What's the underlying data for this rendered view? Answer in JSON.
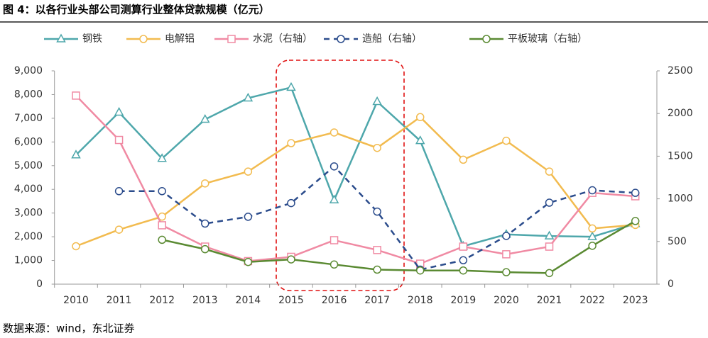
{
  "chart_data": {
    "type": "line",
    "title": "图 4：以各行业头部公司测算行业整体贷款规模（亿元）",
    "source": "数据来源：wind，东北证券",
    "categories": [
      "2010",
      "2011",
      "2012",
      "2013",
      "2014",
      "2015",
      "2016",
      "2017",
      "2018",
      "2019",
      "2020",
      "2021",
      "2022",
      "2023"
    ],
    "series": [
      {
        "name": "钢铁",
        "color": "#4ea7ab",
        "marker": "triangle",
        "values": [
          5450,
          7250,
          5300,
          6950,
          7850,
          8300,
          3550,
          7700,
          6050,
          1600,
          2100,
          2030,
          2000,
          2550
        ]
      },
      {
        "name": "电解铝",
        "color": "#f2bb4f",
        "marker": "circle",
        "values": [
          1600,
          2300,
          2850,
          4250,
          4750,
          5950,
          6400,
          5750,
          7050,
          5250,
          6050,
          4750,
          2350,
          2500
        ]
      },
      {
        "name": "水泥（右轴）",
        "color": "#f08aa3",
        "marker": "square",
        "axis": "y2",
        "values": [
          2210,
          1690,
          690,
          440,
          270,
          320,
          515,
          400,
          240,
          440,
          350,
          440,
          1070,
          1030
        ]
      },
      {
        "name": "造船（右轴）",
        "color": "#2b4c8c",
        "marker": "circle",
        "dash": true,
        "axis": "y2",
        "values": [
          null,
          1090,
          1090,
          710,
          790,
          950,
          1380,
          850,
          170,
          280,
          565,
          955,
          1100,
          1070
        ]
      },
      {
        "name": "平板玻璃（右轴）",
        "color": "#5a8a32",
        "marker": "circle",
        "axis": "y2",
        "values": [
          null,
          null,
          520,
          410,
          260,
          290,
          230,
          170,
          160,
          160,
          140,
          130,
          450,
          740
        ]
      }
    ],
    "ylim": [
      0,
      9000
    ],
    "yticks": [
      0,
      {
        "value": 1000,
        "label": "1,000"
      },
      {
        "value": 2000,
        "label": "2,000"
      },
      {
        "value": 3000,
        "label": "3,000"
      },
      {
        "value": 4000,
        "label": "4,000"
      },
      {
        "value": 5000,
        "label": "5,000"
      },
      {
        "value": 6000,
        "label": "6,000"
      },
      {
        "value": 7000,
        "label": "7,000"
      },
      {
        "value": 8000,
        "label": "8,000"
      },
      {
        "value": 9000,
        "label": "9,000"
      }
    ],
    "y2lim": [
      0,
      2500
    ],
    "y2ticks": [
      0,
      500,
      1000,
      1500,
      2000,
      2500
    ],
    "legend": "top",
    "grid": false
  }
}
